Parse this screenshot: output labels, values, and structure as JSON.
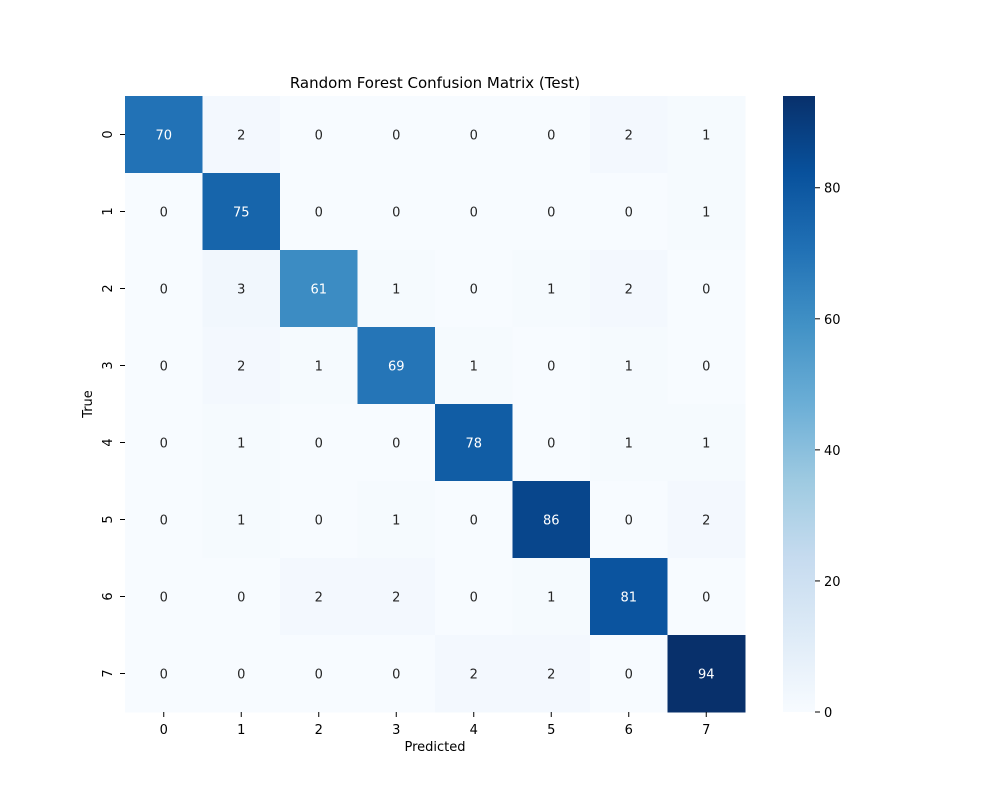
{
  "chart_data": {
    "type": "heatmap",
    "title": "Random Forest Confusion Matrix (Test)",
    "xlabel": "Predicted",
    "ylabel": "True",
    "x_categories": [
      "0",
      "1",
      "2",
      "3",
      "4",
      "5",
      "6",
      "7"
    ],
    "y_categories": [
      "0",
      "1",
      "2",
      "3",
      "4",
      "5",
      "6",
      "7"
    ],
    "values": [
      [
        70,
        2,
        0,
        0,
        0,
        0,
        2,
        1
      ],
      [
        0,
        75,
        0,
        0,
        0,
        0,
        0,
        1
      ],
      [
        0,
        3,
        61,
        1,
        0,
        1,
        2,
        0
      ],
      [
        0,
        2,
        1,
        69,
        1,
        0,
        1,
        0
      ],
      [
        0,
        1,
        0,
        0,
        78,
        0,
        1,
        1
      ],
      [
        0,
        1,
        0,
        1,
        0,
        86,
        0,
        2
      ],
      [
        0,
        0,
        2,
        2,
        0,
        1,
        81,
        0
      ],
      [
        0,
        0,
        0,
        0,
        2,
        2,
        0,
        94
      ]
    ],
    "colormap": "Blues",
    "colorbar": {
      "range": [
        0,
        94
      ],
      "ticks": [
        0,
        20,
        40,
        60,
        80
      ]
    },
    "grid": false
  }
}
